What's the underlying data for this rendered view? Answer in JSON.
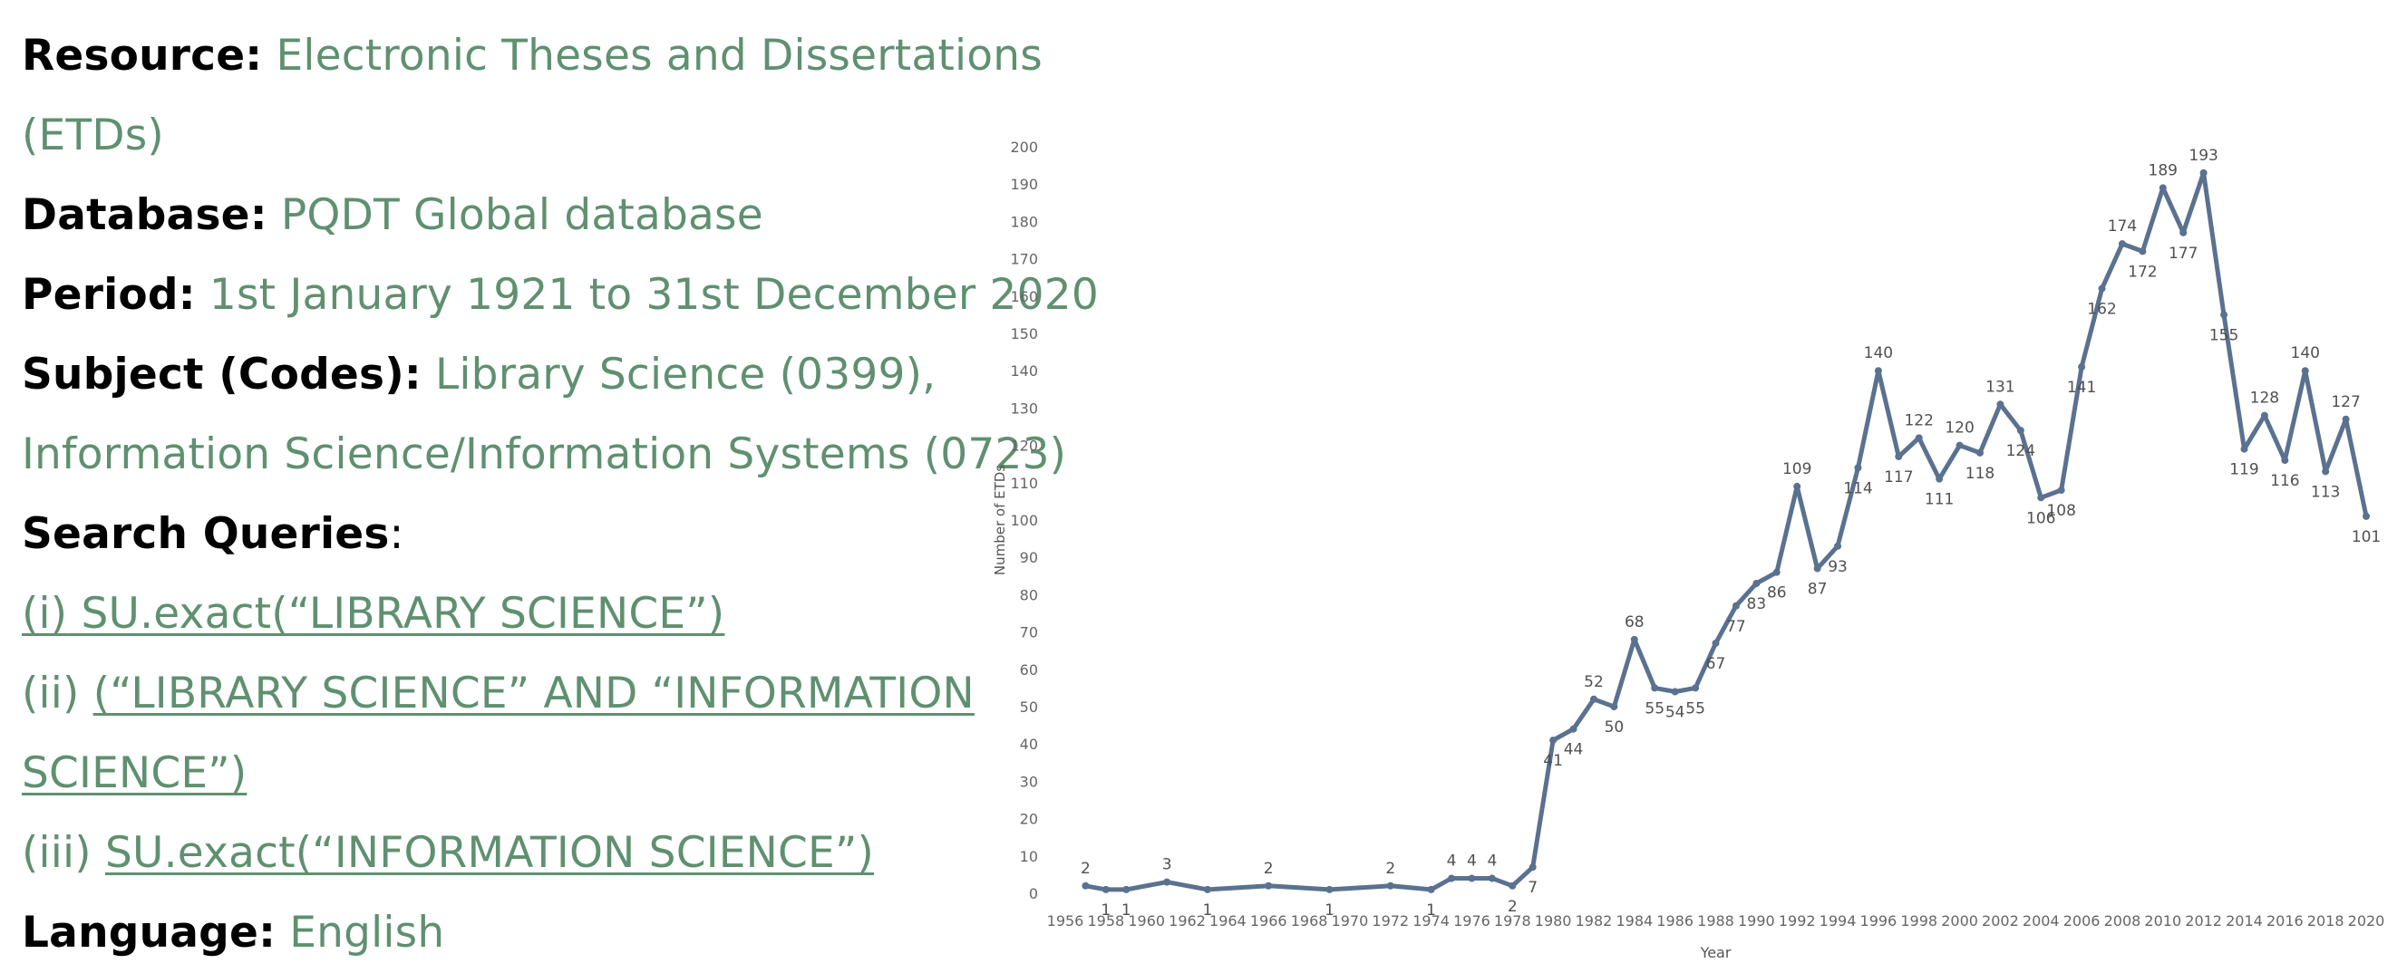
{
  "info": {
    "resource_label": "Resource:",
    "resource_value_1": "Electronic Theses and Dissertations",
    "resource_value_2": "(ETDs)",
    "database_label": "Database:",
    "database_value": "PQDT Global database",
    "period_label": "Period:",
    "period_value": "1st January 1921 to 31st December 2020",
    "subject_label": "Subject (Codes):",
    "subject_value_1": "Library Science (0399),",
    "subject_value_2": "Information Science/Information Systems (0723)",
    "queries_label": "Search Queries",
    "queries_colon": ":",
    "query1_prefix": "(i)",
    "query1_link": " SU.exact(“LIBRARY SCIENCE”)",
    "query2_prefix": "(ii) ",
    "query2_link_1": "(“LIBRARY SCIENCE” AND “INFORMATION",
    "query2_link_2": "SCIENCE”)",
    "query3_prefix": "(iii) ",
    "query3_link": "SU.exact(“INFORMATION SCIENCE”)",
    "language_label": "Language:",
    "language_value": "English"
  },
  "chart_data": {
    "type": "line",
    "title": "",
    "xlabel": "Year",
    "ylabel": "Number of ETDs",
    "xlim": [
      1956,
      2020
    ],
    "ylim": [
      0,
      200
    ],
    "x_ticks": [
      1956,
      1958,
      1960,
      1962,
      1964,
      1966,
      1968,
      1970,
      1972,
      1974,
      1976,
      1978,
      1980,
      1982,
      1984,
      1986,
      1988,
      1990,
      1992,
      1994,
      1996,
      1998,
      2000,
      2002,
      2004,
      2006,
      2008,
      2010,
      2012,
      2014,
      2016,
      2018,
      2020
    ],
    "y_ticks": [
      0,
      10,
      20,
      30,
      40,
      50,
      60,
      70,
      80,
      90,
      100,
      110,
      120,
      130,
      140,
      150,
      160,
      170,
      180,
      190,
      200
    ],
    "grid": false,
    "legend": "none",
    "line_color": "#5a7190",
    "series": [
      {
        "x": [
          1957,
          1958,
          1959,
          1961,
          1963,
          1966,
          1969,
          1972,
          1974,
          1975,
          1976,
          1977,
          1978,
          1979,
          1980,
          1981,
          1982,
          1983,
          1984,
          1985,
          1986,
          1987,
          1988,
          1989,
          1990,
          1991,
          1992,
          1993,
          1994,
          1995,
          1996,
          1997,
          1998,
          1999,
          2000,
          2001,
          2002,
          2003,
          2004,
          2005,
          2006,
          2007,
          2008,
          2009,
          2010,
          2011,
          2012,
          2013,
          2014,
          2015,
          2016,
          2017,
          2018,
          2019,
          2020
        ],
        "values": [
          2,
          1,
          1,
          3,
          1,
          2,
          1,
          2,
          1,
          4,
          4,
          4,
          2,
          7,
          41,
          44,
          52,
          50,
          68,
          55,
          54,
          55,
          67,
          77,
          83,
          86,
          109,
          87,
          93,
          114,
          140,
          117,
          122,
          111,
          120,
          118,
          131,
          124,
          106,
          108,
          141,
          162,
          174,
          172,
          189,
          177,
          193,
          155,
          119,
          128,
          116,
          140,
          113,
          127,
          101
        ]
      }
    ]
  }
}
